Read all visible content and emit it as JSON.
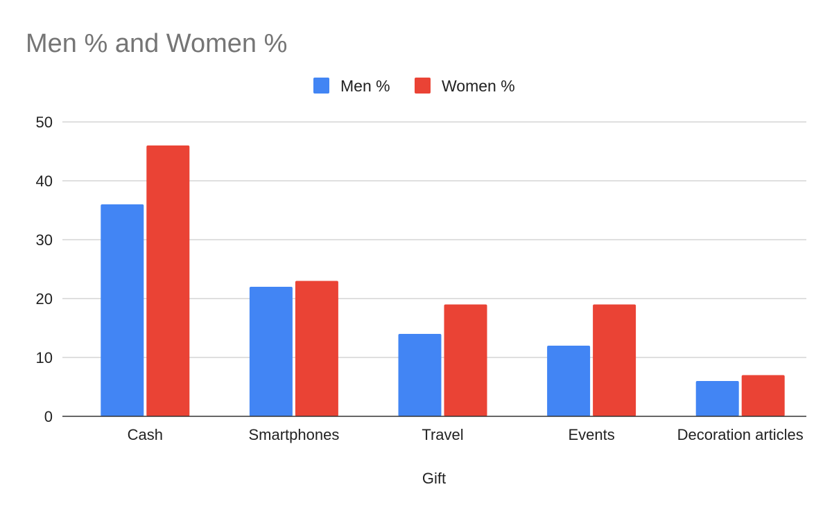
{
  "chart_data": {
    "type": "bar",
    "title": "Men % and Women %",
    "xlabel": "Gift",
    "ylabel": "",
    "categories": [
      "Cash",
      "Smartphones",
      "Travel",
      "Events",
      "Decoration articles"
    ],
    "series": [
      {
        "name": "Men %",
        "values": [
          36,
          22,
          14,
          12,
          6
        ],
        "color": "#4285F4"
      },
      {
        "name": "Women %",
        "values": [
          46,
          23,
          19,
          19,
          7
        ],
        "color": "#EA4335"
      }
    ],
    "ylim": [
      0,
      50
    ],
    "yticks": [
      0,
      10,
      20,
      30,
      40,
      50
    ],
    "grid": true,
    "legend_position": "top-center"
  }
}
